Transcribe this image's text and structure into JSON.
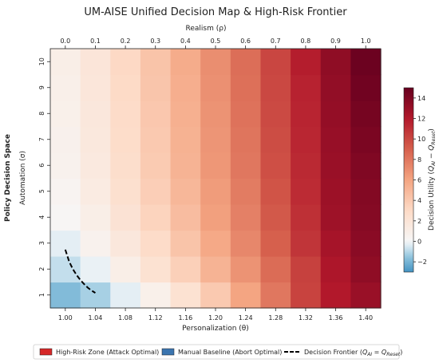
{
  "chart_data": {
    "type": "heatmap",
    "title": "UM-AISE Unified Decision Map & High-Risk Frontier",
    "side_label": "Policy Decision Space",
    "xlabel": "Personalization (θ)",
    "x_ticks": [
      "1.00",
      "1.04",
      "1.08",
      "1.12",
      "1.16",
      "1.20",
      "1.24",
      "1.28",
      "1.32",
      "1.36",
      "1.40"
    ],
    "x2label": "Realism (ρ)",
    "x2_ticks": [
      "0.0",
      "0.1",
      "0.2",
      "0.3",
      "0.4",
      "0.5",
      "0.6",
      "0.7",
      "0.8",
      "0.9",
      "1.0"
    ],
    "ylabel": "Automation (σ)",
    "y_ticks": [
      "1",
      "2",
      "3",
      "4",
      "5",
      "6",
      "7",
      "8",
      "9",
      "10"
    ],
    "z": [
      [
        -1.8,
        -1.2,
        -0.3,
        0.8,
        2.3,
        4.0,
        6.0,
        8.0,
        10.2,
        12.0,
        13.0
      ],
      [
        -0.8,
        -0.2,
        1.0,
        2.3,
        3.6,
        5.2,
        6.8,
        8.5,
        10.3,
        12.2,
        13.4
      ],
      [
        -0.3,
        0.6,
        1.7,
        2.9,
        4.3,
        5.8,
        7.3,
        9.0,
        10.8,
        12.5,
        13.6
      ],
      [
        0.2,
        1.0,
        2.2,
        3.4,
        4.7,
        6.2,
        7.6,
        9.3,
        11.0,
        12.8,
        13.8
      ],
      [
        0.4,
        1.3,
        2.5,
        3.7,
        5.0,
        6.4,
        7.8,
        9.5,
        11.2,
        12.9,
        13.9
      ],
      [
        0.6,
        1.5,
        2.7,
        3.9,
        5.2,
        6.6,
        8.0,
        9.7,
        11.3,
        13.0,
        14.0
      ],
      [
        0.7,
        1.6,
        2.8,
        4.0,
        5.3,
        6.7,
        8.1,
        9.8,
        11.4,
        13.1,
        14.2
      ],
      [
        0.8,
        1.7,
        2.9,
        4.1,
        5.4,
        6.8,
        8.2,
        9.9,
        11.5,
        13.2,
        14.4
      ],
      [
        0.9,
        1.8,
        3.0,
        4.2,
        5.5,
        6.9,
        8.3,
        10.0,
        11.6,
        13.3,
        14.6
      ],
      [
        1.0,
        1.9,
        3.1,
        4.3,
        5.6,
        7.0,
        8.4,
        10.1,
        11.8,
        13.4,
        14.8
      ]
    ],
    "colorbar": {
      "label": "Decision Utility (Q_AI − Q_Reset)",
      "ticks": [
        "−2",
        "0",
        "2",
        "4",
        "6",
        "8",
        "10",
        "12",
        "14"
      ],
      "range": [
        -3,
        15
      ]
    },
    "frontier": {
      "x": [
        1.0,
        1.005,
        1.01,
        1.015,
        1.02,
        1.025,
        1.03,
        1.035,
        1.04
      ],
      "y": [
        2.75,
        2.3,
        2.0,
        1.77,
        1.58,
        1.42,
        1.28,
        1.17,
        1.08
      ]
    },
    "legend": {
      "placement": "bottom",
      "items": [
        {
          "label": "High-Risk Zone (Attack Optimal)",
          "color": "#d62728",
          "kind": "patch"
        },
        {
          "label": "Manual Baseline (Abort Optimal)",
          "color": "#3b75af",
          "kind": "patch"
        },
        {
          "label": "Decision Frontier (Q_AI = Q_Reset)",
          "color": "#000000",
          "kind": "dashed-line"
        }
      ]
    },
    "colormap": "RdBu_r (centered at 0)"
  }
}
